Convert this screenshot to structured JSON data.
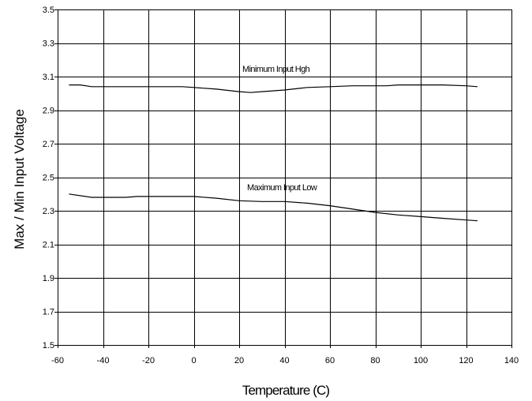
{
  "chart_data": {
    "type": "line",
    "title": "",
    "xlabel": "Temperature (C)",
    "ylabel": "Max / Min Input Voltage",
    "xlim": [
      -60,
      140
    ],
    "ylim": [
      1.5,
      3.5
    ],
    "x_ticks": [
      -60,
      -40,
      -20,
      0,
      20,
      40,
      60,
      80,
      100,
      120,
      140
    ],
    "y_ticks": [
      "1.5",
      "1.7",
      "1.9",
      "2.1",
      "2.3",
      "2.5",
      "2.7",
      "2.9",
      "3.1",
      "3.3",
      "3.5"
    ],
    "grid": true,
    "series": [
      {
        "name": "Minimum Input High",
        "label_text": "Minimum Input Hgh",
        "x": [
          -55,
          -50,
          -45,
          -30,
          -15,
          -5,
          0,
          10,
          20,
          25,
          30,
          40,
          50,
          60,
          70,
          85,
          90,
          100,
          110,
          120,
          125
        ],
        "y": [
          3.05,
          3.05,
          3.04,
          3.04,
          3.04,
          3.04,
          3.035,
          3.025,
          3.01,
          3.005,
          3.01,
          3.02,
          3.035,
          3.04,
          3.045,
          3.045,
          3.05,
          3.05,
          3.05,
          3.045,
          3.04
        ]
      },
      {
        "name": "Maximum Input Low",
        "label_text": "Maximum Input Low",
        "x": [
          -55,
          -45,
          -30,
          -25,
          -10,
          0,
          10,
          20,
          30,
          40,
          50,
          60,
          70,
          80,
          90,
          100,
          110,
          120,
          125
        ],
        "y": [
          2.4,
          2.38,
          2.38,
          2.385,
          2.385,
          2.385,
          2.375,
          2.36,
          2.355,
          2.355,
          2.345,
          2.33,
          2.31,
          2.29,
          2.275,
          2.265,
          2.255,
          2.245,
          2.24
        ]
      }
    ]
  }
}
